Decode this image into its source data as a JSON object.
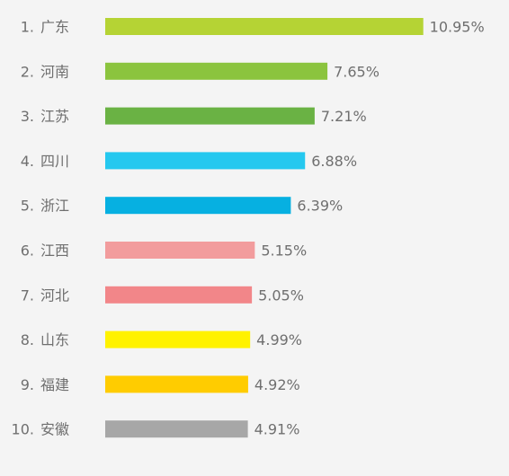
{
  "chart_data": {
    "type": "bar",
    "orientation": "horizontal",
    "categories": [
      "广东",
      "河南",
      "江苏",
      "四川",
      "浙江",
      "江西",
      "河北",
      "山东",
      "福建",
      "安徽"
    ],
    "ranks": [
      "1.",
      "2.",
      "3.",
      "4.",
      "5.",
      "6.",
      "7.",
      "8.",
      "9.",
      "10."
    ],
    "values": [
      10.95,
      7.65,
      7.21,
      6.88,
      6.39,
      5.15,
      5.05,
      4.99,
      4.92,
      4.91
    ],
    "value_labels": [
      "10.95%",
      "7.65%",
      "7.21%",
      "6.88%",
      "6.39%",
      "5.15%",
      "5.05%",
      "4.99%",
      "4.92%",
      "4.91%"
    ],
    "colors": [
      "#b5d334",
      "#8bc43e",
      "#6ab244",
      "#25c8ef",
      "#06b0e1",
      "#f29c9d",
      "#f28689",
      "#fff200",
      "#ffcc00",
      "#a7a7a7"
    ],
    "title": "",
    "xlabel": "",
    "ylabel": "",
    "grid": false,
    "legend": "none"
  }
}
